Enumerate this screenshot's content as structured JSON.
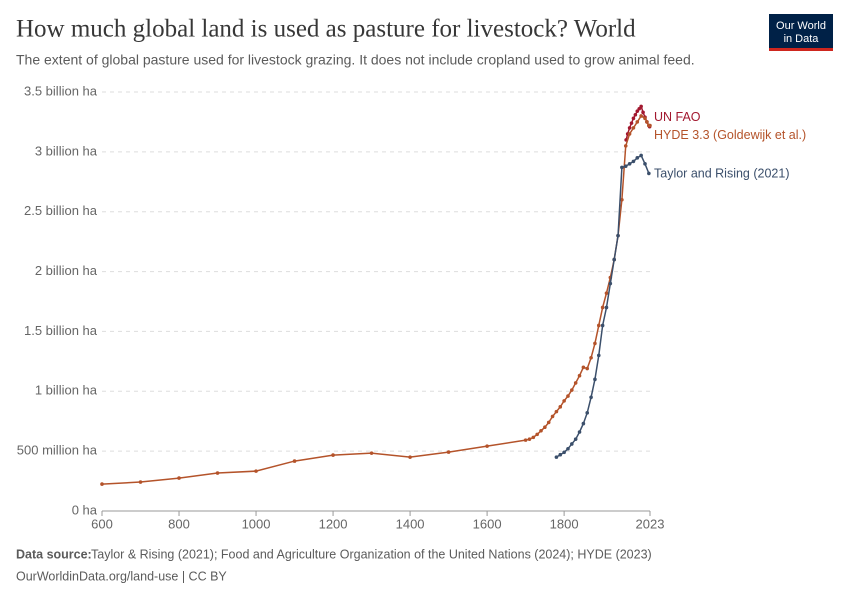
{
  "chart_data": {
    "type": "line",
    "title": "How much global land is used as pasture for livestock? World",
    "subtitle": "The extent of global pasture used for livestock grazing. It does not include cropland used to grow animal feed.",
    "logo": [
      "Our World",
      "in Data"
    ],
    "source_label": "Data source:",
    "source_text": "Taylor & Rising (2021); Food and Agriculture Organization of the United Nations (2024); HYDE (2023)",
    "url_line": "OurWorldinData.org/land-use | CC BY",
    "xlim": [
      600,
      2023
    ],
    "xticks": [
      600,
      800,
      1000,
      1200,
      1400,
      1600,
      1800,
      2023
    ],
    "ylim": [
      0,
      3500000000
    ],
    "yticks": [
      {
        "value": 0,
        "label": "0 ha"
      },
      {
        "value": 500000000,
        "label": "500 million ha"
      },
      {
        "value": 1000000000,
        "label": "1 billion ha"
      },
      {
        "value": 1500000000,
        "label": "1.5 billion ha"
      },
      {
        "value": 2000000000,
        "label": "2 billion ha"
      },
      {
        "value": 2500000000,
        "label": "2.5 billion ha"
      },
      {
        "value": 3000000000,
        "label": "3 billion ha"
      },
      {
        "value": 3500000000,
        "label": "3.5 billion ha"
      }
    ],
    "grid": true,
    "series": [
      {
        "name": "UN FAO",
        "color": "#a2182f",
        "x": [
          1961,
          1965,
          1970,
          1975,
          1980,
          1985,
          1990,
          1995,
          2000,
          2005,
          2010,
          2015,
          2020,
          2022
        ],
        "values": [
          3100000000,
          3150000000,
          3200000000,
          3240000000,
          3280000000,
          3310000000,
          3340000000,
          3360000000,
          3380000000,
          3330000000,
          3290000000,
          3250000000,
          3220000000,
          3210000000
        ]
      },
      {
        "name": "HYDE 3.3 (Goldewijk et al.)",
        "color": "#b4532a",
        "x": [
          600,
          700,
          800,
          900,
          1000,
          1100,
          1200,
          1300,
          1400,
          1500,
          1600,
          1700,
          1710,
          1720,
          1730,
          1740,
          1750,
          1760,
          1770,
          1780,
          1790,
          1800,
          1810,
          1820,
          1830,
          1840,
          1850,
          1860,
          1870,
          1880,
          1890,
          1900,
          1910,
          1920,
          1930,
          1940,
          1950,
          1960,
          1970,
          1980,
          1990,
          2000,
          2010,
          2015,
          2020,
          2023
        ],
        "values": [
          225000000,
          242000000,
          275000000,
          317000000,
          333000000,
          417000000,
          467000000,
          483000000,
          450000000,
          492000000,
          542000000,
          592000000,
          600000000,
          615000000,
          640000000,
          670000000,
          700000000,
          740000000,
          790000000,
          830000000,
          870000000,
          920000000,
          960000000,
          1010000000,
          1070000000,
          1130000000,
          1200000000,
          1190000000,
          1280000000,
          1400000000,
          1550000000,
          1700000000,
          1820000000,
          1950000000,
          2100000000,
          2300000000,
          2600000000,
          3050000000,
          3150000000,
          3200000000,
          3250000000,
          3300000000,
          3280000000,
          3250000000,
          3220000000,
          3220000000
        ]
      },
      {
        "name": "Taylor and Rising (2021)",
        "color": "#3b4f6b",
        "x": [
          1780,
          1790,
          1800,
          1810,
          1820,
          1830,
          1840,
          1850,
          1860,
          1870,
          1880,
          1890,
          1900,
          1910,
          1920,
          1930,
          1940,
          1950,
          1960,
          1970,
          1980,
          1990,
          2000,
          2010,
          2020
        ],
        "values": [
          450000000,
          470000000,
          490000000,
          520000000,
          560000000,
          600000000,
          660000000,
          730000000,
          820000000,
          950000000,
          1100000000,
          1300000000,
          1550000000,
          1700000000,
          1900000000,
          2100000000,
          2300000000,
          2870000000,
          2880000000,
          2900000000,
          2920000000,
          2950000000,
          2970000000,
          2900000000,
          2820000000
        ]
      }
    ]
  }
}
